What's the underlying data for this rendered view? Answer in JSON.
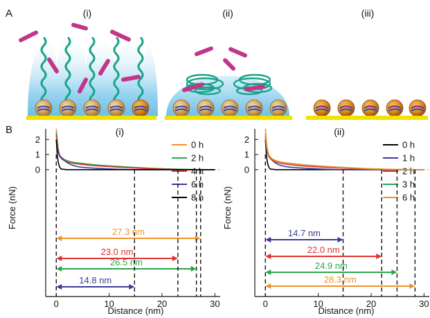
{
  "panel_letters": {
    "a": "A",
    "b": "B"
  },
  "schematics": [
    {
      "label": "(i)"
    },
    {
      "label": "(ii)"
    },
    {
      "label": "(iii)"
    }
  ],
  "chart_data": [
    {
      "type": "line",
      "panel": "(i)",
      "xlabel": "Distance (nm)",
      "ylabel": "Force (nN)",
      "xlim": [
        -2,
        31
      ],
      "ylim": [
        -8.4,
        2.7
      ],
      "xticks": [
        0,
        10,
        20,
        30
      ],
      "yticks": [
        0,
        1,
        2
      ],
      "legend_position": "top-right",
      "series": [
        {
          "name": "0 h",
          "color": "#f0922a",
          "decay_length": 27.3,
          "x": [
            0,
            0.3,
            0.6,
            1,
            1.5,
            2,
            3,
            4,
            5,
            6,
            7,
            8,
            10,
            12,
            14,
            16,
            18,
            20,
            22,
            24,
            26,
            27.3,
            28,
            29,
            30
          ],
          "y": [
            2.7,
            1.5,
            1.0,
            0.8,
            0.68,
            0.6,
            0.5,
            0.44,
            0.4,
            0.36,
            0.32,
            0.29,
            0.24,
            0.2,
            0.16,
            0.12,
            0.09,
            0.06,
            0.04,
            0.02,
            0.01,
            0,
            0,
            0,
            0
          ]
        },
        {
          "name": "2 h",
          "color": "#2aa64a",
          "decay_length": 26.5,
          "x": [
            0,
            0.3,
            0.6,
            1,
            1.5,
            2,
            3,
            4,
            5,
            6,
            7,
            8,
            10,
            12,
            14,
            16,
            18,
            20,
            22,
            24,
            26.5,
            28,
            30
          ],
          "y": [
            2.5,
            1.4,
            0.95,
            0.78,
            0.66,
            0.58,
            0.5,
            0.45,
            0.41,
            0.37,
            0.33,
            0.3,
            0.25,
            0.21,
            0.16,
            0.12,
            0.09,
            0.06,
            0.04,
            0.02,
            0,
            0,
            0
          ]
        },
        {
          "name": "4 h",
          "color": "#e03030",
          "decay_length": 23.0,
          "x": [
            0,
            0.3,
            0.6,
            1,
            1.5,
            2,
            3,
            4,
            5,
            6,
            7,
            8,
            10,
            12,
            14,
            16,
            18,
            20,
            23,
            25,
            28,
            30
          ],
          "y": [
            2.3,
            1.3,
            0.9,
            0.72,
            0.6,
            0.52,
            0.43,
            0.38,
            0.34,
            0.3,
            0.27,
            0.24,
            0.2,
            0.16,
            0.12,
            0.09,
            0.06,
            0.03,
            0,
            0,
            0,
            0
          ]
        },
        {
          "name": "6 h",
          "color": "#3a3a9a",
          "decay_length": 14.8,
          "x": [
            0,
            0.3,
            0.6,
            1,
            1.5,
            2,
            2.5,
            3,
            4,
            5,
            6,
            8,
            10,
            12,
            14.8,
            17,
            20,
            25,
            30
          ],
          "y": [
            2.0,
            1.2,
            0.95,
            0.8,
            0.62,
            0.48,
            0.38,
            0.3,
            0.2,
            0.15,
            0.12,
            0.08,
            0.05,
            0.02,
            0,
            0,
            0,
            0,
            0
          ]
        },
        {
          "name": "8 h",
          "color": "#000000",
          "decay_length": null,
          "x": [
            0,
            0.2,
            0.4,
            0.6,
            0.8,
            1,
            1.5,
            2,
            5,
            10,
            20,
            30
          ],
          "y": [
            2.0,
            0.9,
            0.45,
            0.2,
            0.08,
            0.04,
            0.02,
            0,
            0,
            0,
            0,
            0
          ]
        }
      ],
      "decay_labels": [
        {
          "text": "27.3 nm",
          "value": 27.3,
          "color": "#f0922a"
        },
        {
          "text": "26.5 nm",
          "value": 26.5,
          "color": "#2aa64a"
        },
        {
          "text": "23.0 nm",
          "value": 23.0,
          "color": "#e03030"
        },
        {
          "text": "14.8 nm",
          "value": 14.8,
          "color": "#3a3a9a"
        }
      ]
    },
    {
      "type": "line",
      "panel": "(ii)",
      "xlabel": "Distance (nm)",
      "ylabel": "Force (nN)",
      "xlim": [
        -2,
        31
      ],
      "ylim": [
        -8.4,
        2.7
      ],
      "xticks": [
        0,
        10,
        20,
        30
      ],
      "yticks": [
        0,
        1,
        2
      ],
      "legend_position": "top-right",
      "series": [
        {
          "name": "0 h",
          "color": "#000000",
          "decay_length": null,
          "x": [
            0,
            0.2,
            0.4,
            0.6,
            0.8,
            1,
            1.5,
            2,
            5,
            10,
            20,
            30
          ],
          "y": [
            2.0,
            0.9,
            0.45,
            0.2,
            0.08,
            0.04,
            0.02,
            0,
            0,
            0,
            0,
            0
          ]
        },
        {
          "name": "1 h",
          "color": "#3a3a9a",
          "decay_length": 14.7,
          "x": [
            0,
            0.3,
            0.6,
            1,
            1.5,
            2,
            2.5,
            3,
            4,
            5,
            6,
            8,
            10,
            12,
            14.7,
            17,
            20,
            25,
            30
          ],
          "y": [
            2.0,
            1.2,
            0.9,
            0.72,
            0.55,
            0.42,
            0.33,
            0.27,
            0.19,
            0.15,
            0.12,
            0.08,
            0.05,
            0.02,
            0,
            0,
            0,
            0,
            0
          ]
        },
        {
          "name": "2 h",
          "color": "#e03030",
          "decay_length": 22.0,
          "x": [
            0,
            0.3,
            0.6,
            1,
            1.5,
            2,
            3,
            4,
            5,
            6,
            7,
            8,
            10,
            12,
            14,
            16,
            18,
            20,
            22,
            25,
            30
          ],
          "y": [
            2.2,
            1.25,
            0.88,
            0.7,
            0.58,
            0.5,
            0.41,
            0.36,
            0.32,
            0.28,
            0.25,
            0.22,
            0.18,
            0.14,
            0.11,
            0.08,
            0.05,
            0.03,
            0,
            0,
            0
          ]
        },
        {
          "name": "3 h",
          "color": "#2aa64a",
          "decay_length": 24.9,
          "x": [
            0,
            0.3,
            0.6,
            1,
            1.5,
            2,
            3,
            4,
            5,
            6,
            7,
            8,
            10,
            12,
            14,
            16,
            18,
            20,
            22,
            24.9,
            27,
            30
          ],
          "y": [
            2.4,
            1.35,
            0.95,
            0.78,
            0.66,
            0.58,
            0.5,
            0.45,
            0.41,
            0.37,
            0.33,
            0.3,
            0.25,
            0.2,
            0.16,
            0.12,
            0.08,
            0.05,
            0.03,
            0,
            0,
            0
          ]
        },
        {
          "name": "6 h",
          "color": "#f0922a",
          "decay_length": 28.3,
          "x": [
            0,
            0.3,
            0.6,
            1,
            1.5,
            2,
            3,
            4,
            5,
            6,
            7,
            8,
            10,
            12,
            14,
            16,
            18,
            20,
            22,
            24,
            26,
            28.3,
            30
          ],
          "y": [
            2.7,
            1.5,
            1.0,
            0.8,
            0.67,
            0.6,
            0.5,
            0.44,
            0.4,
            0.36,
            0.32,
            0.29,
            0.24,
            0.2,
            0.16,
            0.12,
            0.09,
            0.06,
            0.04,
            0.02,
            0.01,
            0,
            0
          ]
        }
      ],
      "decay_labels": [
        {
          "text": "14.7 nm",
          "value": 14.7,
          "color": "#3a3a9a"
        },
        {
          "text": "22.0 nm",
          "value": 22.0,
          "color": "#e03030"
        },
        {
          "text": "24.9 nm",
          "value": 24.9,
          "color": "#2aa64a"
        },
        {
          "text": "28.3 nm",
          "value": 28.3,
          "color": "#f0922a"
        }
      ]
    }
  ]
}
